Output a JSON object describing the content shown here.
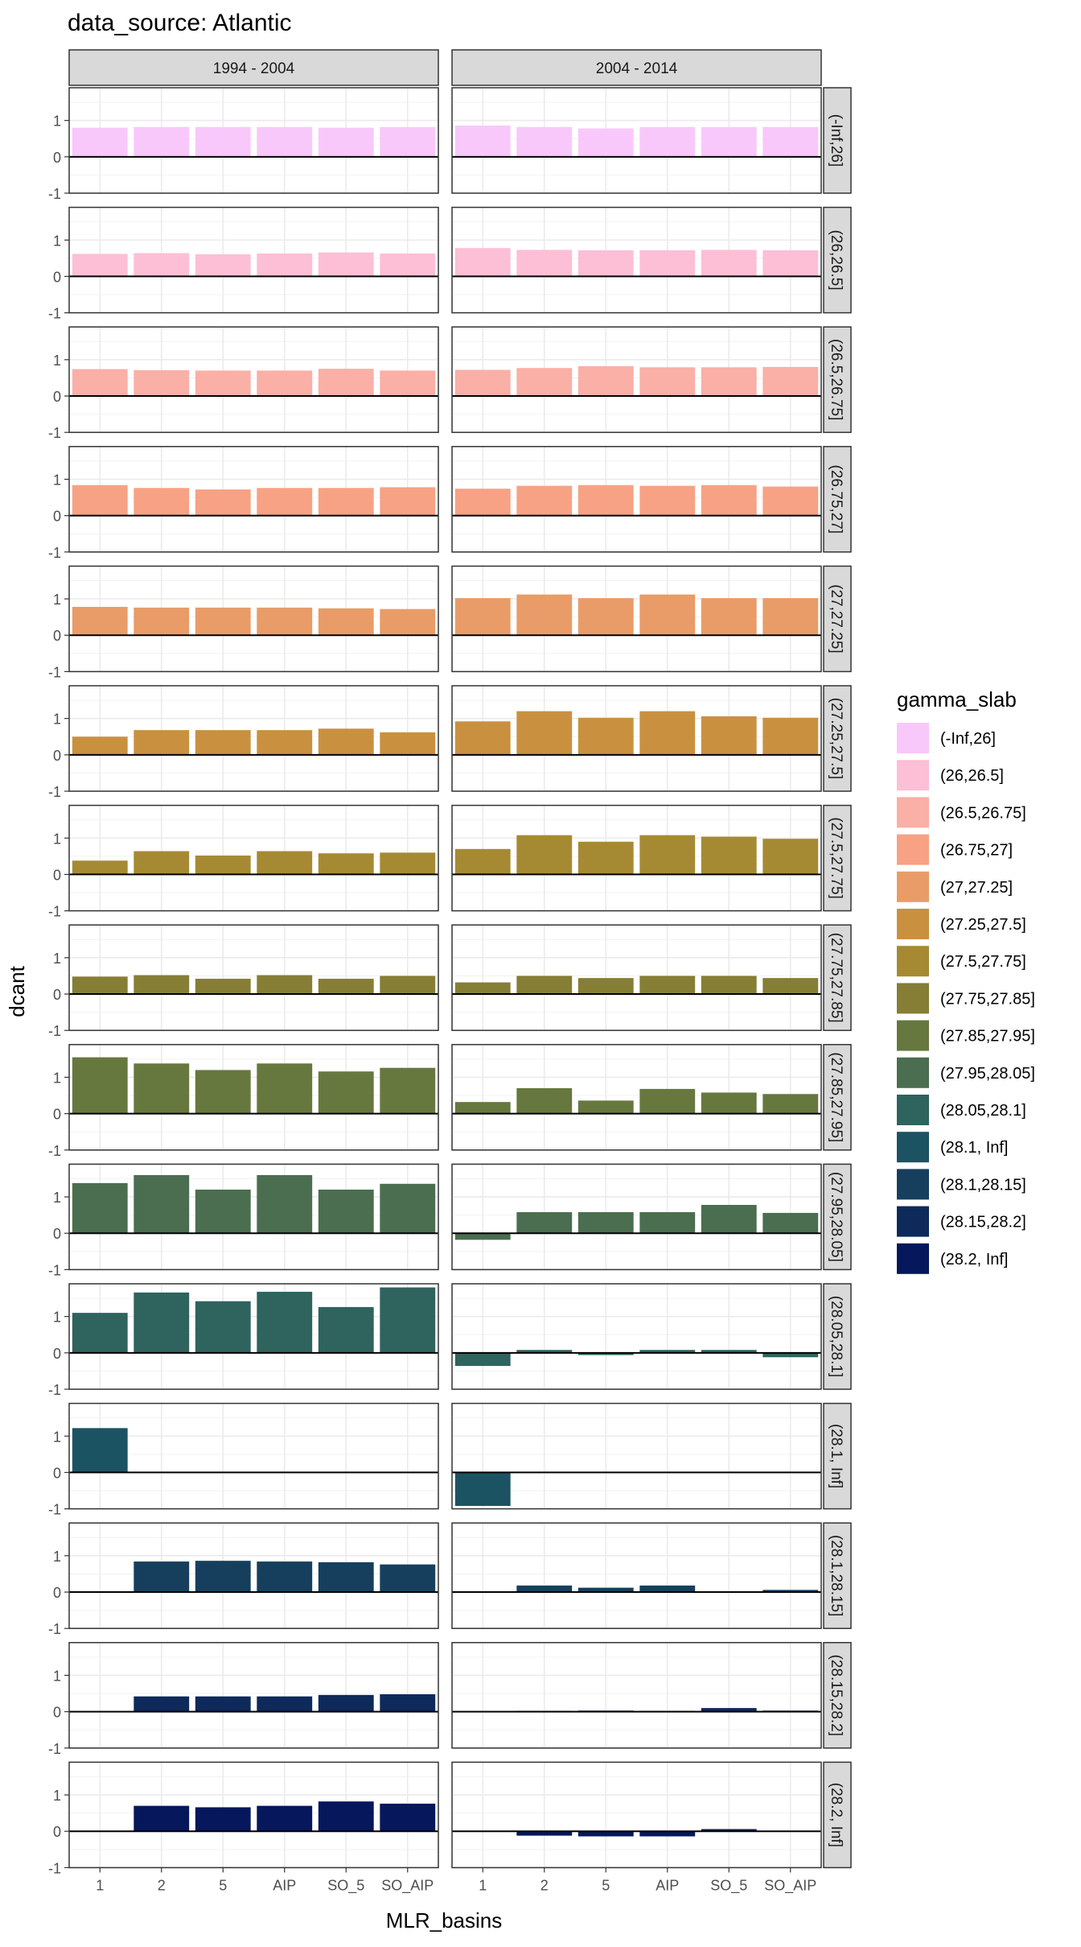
{
  "chart_data": {
    "type": "bar",
    "title": "data_source: Atlantic",
    "xlabel": "MLR_basins",
    "ylabel": "dcant",
    "ylim": [
      -1,
      1.9
    ],
    "yticks": [
      -1,
      0,
      1
    ],
    "grid": true,
    "categories": [
      "1",
      "2",
      "5",
      "AIP",
      "SO_5",
      "SO_AIP"
    ],
    "columns": [
      "1994 - 2004",
      "2004 - 2014"
    ],
    "legend": {
      "title": "gamma_slab",
      "placement": "right"
    },
    "rows": [
      {
        "label": "(-Inf,26]",
        "color": "#F9C8FA",
        "series": [
          {
            "values": [
              0.8,
              0.82,
              0.82,
              0.82,
              0.8,
              0.82
            ]
          },
          {
            "values": [
              0.86,
              0.82,
              0.78,
              0.82,
              0.82,
              0.82
            ]
          }
        ]
      },
      {
        "label": "(26,26.5]",
        "color": "#FCBFD6",
        "series": [
          {
            "values": [
              0.62,
              0.64,
              0.61,
              0.63,
              0.66,
              0.63
            ]
          },
          {
            "values": [
              0.78,
              0.73,
              0.72,
              0.72,
              0.73,
              0.72
            ]
          }
        ]
      },
      {
        "label": "(26.5,26.75]",
        "color": "#FAAFA7",
        "series": [
          {
            "values": [
              0.74,
              0.71,
              0.7,
              0.7,
              0.75,
              0.7
            ]
          },
          {
            "values": [
              0.72,
              0.77,
              0.82,
              0.79,
              0.79,
              0.8
            ]
          }
        ]
      },
      {
        "label": "(26.75,27]",
        "color": "#F7A284",
        "series": [
          {
            "values": [
              0.84,
              0.76,
              0.72,
              0.76,
              0.76,
              0.78
            ]
          },
          {
            "values": [
              0.74,
              0.82,
              0.84,
              0.82,
              0.84,
              0.8
            ]
          }
        ]
      },
      {
        "label": "(27,27.25]",
        "color": "#E99C67",
        "series": [
          {
            "values": [
              0.78,
              0.76,
              0.76,
              0.76,
              0.74,
              0.72
            ]
          },
          {
            "values": [
              1.02,
              1.12,
              1.02,
              1.12,
              1.02,
              1.02
            ]
          }
        ]
      },
      {
        "label": "(27.25,27.5]",
        "color": "#C9913F",
        "series": [
          {
            "values": [
              0.5,
              0.68,
              0.68,
              0.68,
              0.72,
              0.62
            ]
          },
          {
            "values": [
              0.92,
              1.2,
              1.02,
              1.2,
              1.06,
              1.02
            ]
          }
        ]
      },
      {
        "label": "(27.5,27.75]",
        "color": "#A68A33",
        "series": [
          {
            "values": [
              0.38,
              0.64,
              0.52,
              0.64,
              0.58,
              0.6
            ]
          },
          {
            "values": [
              0.7,
              1.08,
              0.9,
              1.08,
              1.04,
              0.98
            ]
          }
        ]
      },
      {
        "label": "(27.75,27.85]",
        "color": "#857E34",
        "series": [
          {
            "values": [
              0.48,
              0.52,
              0.42,
              0.52,
              0.42,
              0.5
            ]
          },
          {
            "values": [
              0.32,
              0.5,
              0.44,
              0.5,
              0.5,
              0.44
            ]
          }
        ]
      },
      {
        "label": "(27.85,27.95]",
        "color": "#66783E",
        "series": [
          {
            "values": [
              1.55,
              1.38,
              1.2,
              1.38,
              1.16,
              1.26
            ]
          },
          {
            "values": [
              0.32,
              0.7,
              0.36,
              0.68,
              0.58,
              0.54
            ]
          }
        ]
      },
      {
        "label": "(27.95,28.05]",
        "color": "#4A6E4F",
        "series": [
          {
            "values": [
              1.38,
              1.6,
              1.2,
              1.6,
              1.2,
              1.36
            ]
          },
          {
            "values": [
              -0.18,
              0.58,
              0.58,
              0.58,
              0.78,
              0.56
            ]
          }
        ]
      },
      {
        "label": "(28.05,28.1]",
        "color": "#2E635E",
        "series": [
          {
            "values": [
              1.1,
              1.66,
              1.42,
              1.68,
              1.26,
              1.8
            ]
          },
          {
            "values": [
              -0.36,
              0.08,
              -0.06,
              0.08,
              0.08,
              -0.12
            ]
          }
        ]
      },
      {
        "label": "(28.1, Inf]",
        "color": "#1C5363",
        "series": [
          {
            "values": [
              1.22,
              null,
              null,
              null,
              null,
              null
            ]
          },
          {
            "values": [
              -0.92,
              null,
              null,
              null,
              null,
              null
            ]
          }
        ]
      },
      {
        "label": "(28.1,28.15]",
        "color": "#163F5E",
        "series": [
          {
            "values": [
              null,
              0.84,
              0.86,
              0.84,
              0.82,
              0.76
            ]
          },
          {
            "values": [
              null,
              0.18,
              0.12,
              0.18,
              0.02,
              0.06
            ]
          }
        ]
      },
      {
        "label": "(28.15,28.2]",
        "color": "#0E2A5B",
        "series": [
          {
            "values": [
              null,
              0.42,
              0.42,
              0.42,
              0.46,
              0.48
            ]
          },
          {
            "values": [
              null,
              0.02,
              0.03,
              0.02,
              0.1,
              0.03
            ]
          }
        ]
      },
      {
        "label": "(28.2, Inf]",
        "color": "#06175B",
        "series": [
          {
            "values": [
              null,
              0.7,
              0.66,
              0.7,
              0.82,
              0.76
            ]
          },
          {
            "values": [
              null,
              -0.12,
              -0.14,
              -0.14,
              0.06,
              0.0
            ]
          }
        ]
      }
    ]
  }
}
